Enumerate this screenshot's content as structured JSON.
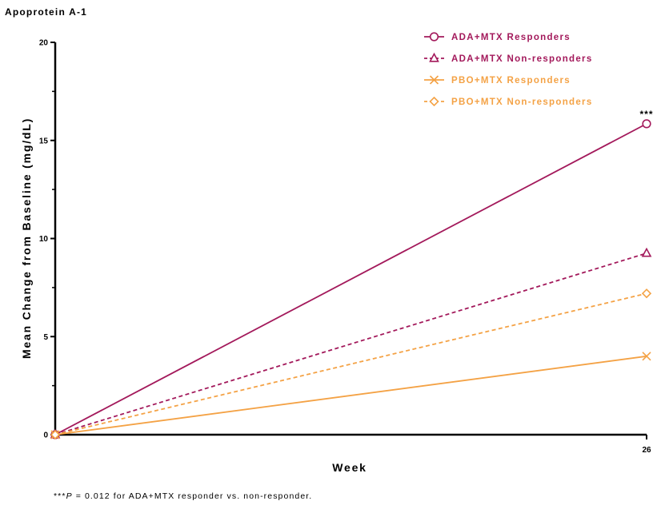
{
  "chart_data": {
    "type": "line",
    "title": "Apoprotein A-1",
    "xlabel": "Week",
    "ylabel": "Mean Change from Baseline (mg/dL)",
    "x": [
      0,
      26
    ],
    "x_tick_labels": [
      "26"
    ],
    "ylim": [
      0,
      20
    ],
    "y_ticks": [
      0,
      5,
      10,
      15,
      20
    ],
    "grid": false,
    "legend_position": "top-right",
    "series": [
      {
        "name": "ADA+MTX Responders",
        "values": [
          0,
          15.85
        ],
        "color": "#A3195B",
        "dash": "solid",
        "marker": "circle"
      },
      {
        "name": "ADA+MTX Non-responders",
        "values": [
          0,
          9.25
        ],
        "color": "#A3195B",
        "dash": "dashed",
        "marker": "triangle"
      },
      {
        "name": "PBO+MTX Responders",
        "values": [
          0,
          4.0
        ],
        "color": "#F4A245",
        "dash": "solid",
        "marker": "x"
      },
      {
        "name": "PBO+MTX Non-responders",
        "values": [
          0,
          7.2
        ],
        "color": "#F4A245",
        "dash": "dashed",
        "marker": "diamond"
      }
    ],
    "annotations": [
      {
        "text": "***",
        "x": 26,
        "y": 15.85
      }
    ],
    "footnote": {
      "stars": "***",
      "p": "P",
      "rest": " = 0.012 for ADA+MTX responder vs. non-responder."
    }
  }
}
